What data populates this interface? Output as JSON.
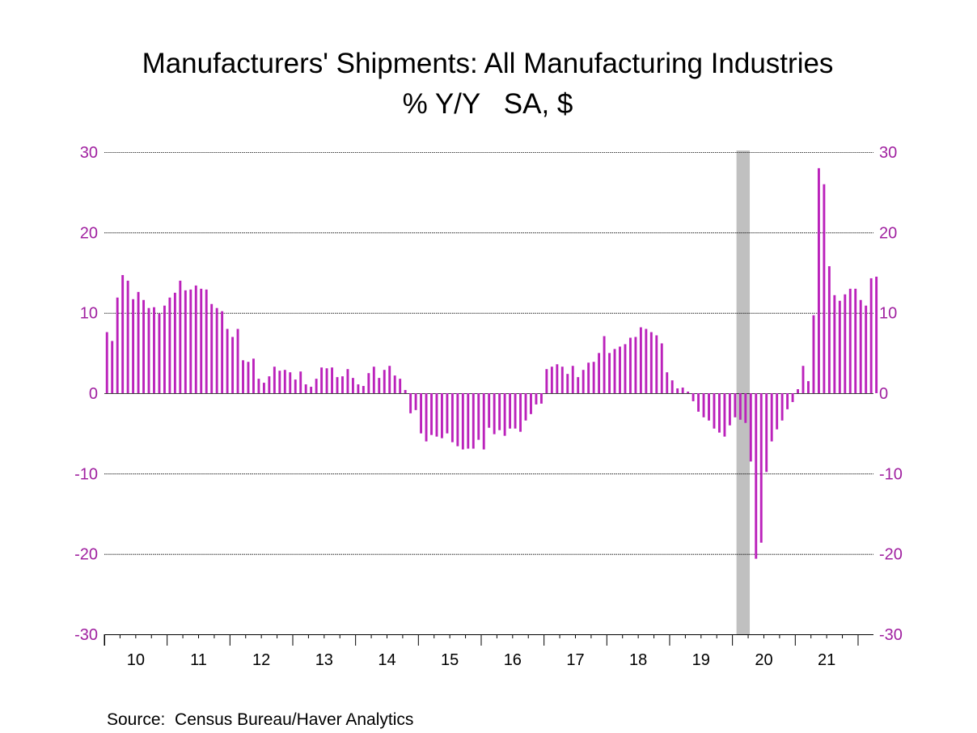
{
  "colors": {
    "bar": "#bb22bb",
    "axis_labels": "#a020a0",
    "recession": "#c0c0c0",
    "grid": "#000000"
  },
  "chart_data": {
    "type": "bar",
    "title": "Manufacturers' Shipments: All Manufacturing Industries",
    "subtitle": "% Y/Y   SA, $",
    "source": "Source:  Census Bureau/Haver Analytics",
    "ylim": [
      -30,
      30
    ],
    "yticks": [
      30,
      20,
      10,
      0,
      -10,
      -20,
      -30
    ],
    "ytick_labels": [
      "30",
      "20",
      "10",
      "0",
      "-10",
      "-20",
      "-30"
    ],
    "y_axes": [
      "left",
      "right"
    ],
    "grid": true,
    "x_start": "2010-01",
    "xtick_labels": [
      "10",
      "11",
      "12",
      "13",
      "14",
      "15",
      "16",
      "17",
      "18",
      "19",
      "20",
      "21"
    ],
    "recession_shading": {
      "start": "2020-02",
      "end": "2020-04"
    },
    "values": [
      7.6,
      6.5,
      11.9,
      14.7,
      14.0,
      11.7,
      12.6,
      11.6,
      10.6,
      10.7,
      9.9,
      10.9,
      11.9,
      12.5,
      14.0,
      12.8,
      12.9,
      13.4,
      13.0,
      12.9,
      11.1,
      10.6,
      10.2,
      8.0,
      7.0,
      8.0,
      4.1,
      3.9,
      4.3,
      1.8,
      1.3,
      2.1,
      3.3,
      2.8,
      2.9,
      2.6,
      1.7,
      2.7,
      1.1,
      0.8,
      1.8,
      3.2,
      3.1,
      3.2,
      2.0,
      2.1,
      3.0,
      1.9,
      1.1,
      0.9,
      2.5,
      3.3,
      1.9,
      2.9,
      3.4,
      2.2,
      1.8,
      0.4,
      -2.5,
      -2.1,
      -5.0,
      -6.0,
      -5.2,
      -5.4,
      -5.6,
      -5.0,
      -6.1,
      -6.6,
      -7.0,
      -6.9,
      -6.9,
      -5.8,
      -7.0,
      -4.3,
      -5.1,
      -4.6,
      -5.3,
      -4.4,
      -4.4,
      -4.8,
      -3.4,
      -2.6,
      -1.4,
      -1.3,
      3.0,
      3.3,
      3.6,
      3.3,
      2.4,
      3.4,
      2.0,
      2.9,
      3.8,
      3.9,
      5.0,
      7.1,
      5.0,
      5.5,
      5.8,
      6.1,
      6.9,
      7.0,
      8.2,
      8.0,
      7.6,
      7.2,
      6.2,
      2.6,
      1.6,
      0.6,
      0.7,
      0.2,
      -1.0,
      -2.3,
      -3.0,
      -3.4,
      -4.4,
      -4.9,
      -5.4,
      -4.0,
      -3.0,
      -3.3,
      -3.7,
      -8.5,
      -20.6,
      -18.6,
      -9.8,
      -6.0,
      -4.5,
      -3.4,
      -2.0,
      -1.1,
      0.5,
      3.4,
      1.5,
      9.7,
      28.0,
      26.0,
      15.8,
      12.2,
      11.5,
      12.3,
      13.0,
      13.0,
      11.6,
      10.9,
      14.3,
      14.5
    ]
  }
}
